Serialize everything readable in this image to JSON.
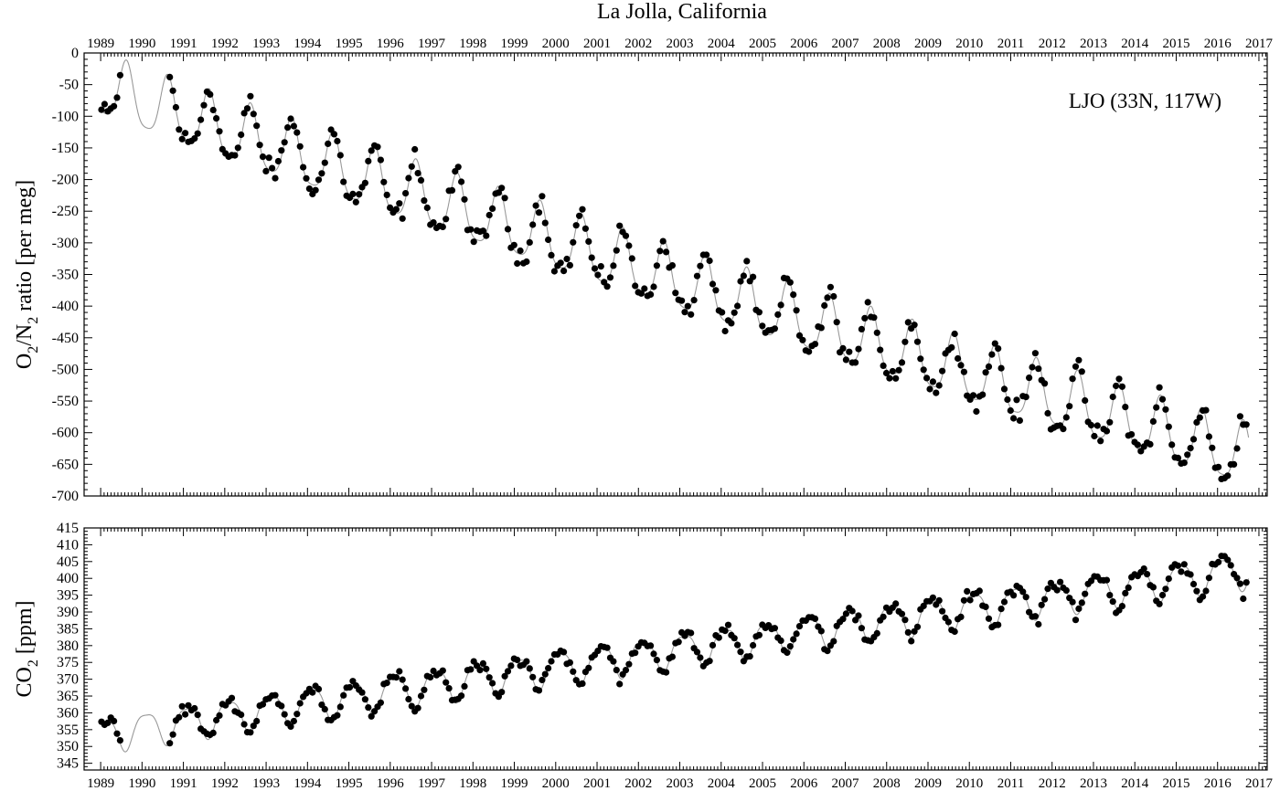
{
  "title": "La Jolla, California",
  "colors": {
    "points": "#000000",
    "fit_line": "#999999",
    "axes": "#000000"
  },
  "chart_data": [
    {
      "type": "scatter",
      "panel": "top",
      "ylabel": {
        "main": "O",
        "sub1": "2",
        "mid": "/N",
        "sub2": "2",
        "rest": " ratio [per meg]"
      },
      "annotation": "LJO (33N, 117W)",
      "annotation_position": "top-right",
      "xlim": [
        1988.6,
        2017.2
      ],
      "ylim": [
        -700,
        0
      ],
      "x_ticks": [
        "1989",
        "1990",
        "1991",
        "1992",
        "1993",
        "1994",
        "1995",
        "1996",
        "1997",
        "1998",
        "1999",
        "2000",
        "2001",
        "2002",
        "2003",
        "2004",
        "2005",
        "2006",
        "2007",
        "2008",
        "2009",
        "2010",
        "2011",
        "2012",
        "2013",
        "2014",
        "2015",
        "2016",
        "2017"
      ],
      "y_ticks": [
        "0",
        "-50",
        "-100",
        "-150",
        "-200",
        "-250",
        "-300",
        "-350",
        "-400",
        "-450",
        "-500",
        "-550",
        "-600",
        "-650",
        "-700"
      ],
      "series": [
        {
          "style": "points",
          "trend": {
            "start_year": 1989.0,
            "end_year": 2016.75,
            "start_value": -55,
            "end_value": -640,
            "curvature": -48
          },
          "seasonal_amplitude": 48,
          "peak_phase": 0.62,
          "scatter": 12
        },
        {
          "style": "line",
          "description_of": "smoothed fit through points"
        }
      ]
    },
    {
      "type": "scatter",
      "panel": "bottom",
      "ylabel": {
        "main": "CO",
        "sub1": "2",
        "rest": " [ppm]"
      },
      "xlim": [
        1988.6,
        2017.2
      ],
      "ylim": [
        343,
        415
      ],
      "x_ticks": [
        "1989",
        "1990",
        "1991",
        "1992",
        "1993",
        "1994",
        "1995",
        "1996",
        "1997",
        "1998",
        "1999",
        "2000",
        "2001",
        "2002",
        "2003",
        "2004",
        "2005",
        "2006",
        "2007",
        "2008",
        "2009",
        "2010",
        "2011",
        "2012",
        "2013",
        "2014",
        "2015",
        "2016",
        "2017"
      ],
      "y_ticks": [
        "345",
        "350",
        "355",
        "360",
        "365",
        "370",
        "375",
        "380",
        "385",
        "390",
        "395",
        "400",
        "405",
        "410",
        "415"
      ],
      "series": [
        {
          "style": "points",
          "trend": {
            "start_year": 1989.0,
            "end_year": 2016.75,
            "start_value": 353.5,
            "end_value": 402.5,
            "curvature": 2.0
          },
          "seasonal_amplitude": 5.0,
          "trough_phase": 0.6,
          "scatter": 1.3
        },
        {
          "style": "line",
          "description_of": "smoothed fit through points"
        }
      ]
    }
  ]
}
